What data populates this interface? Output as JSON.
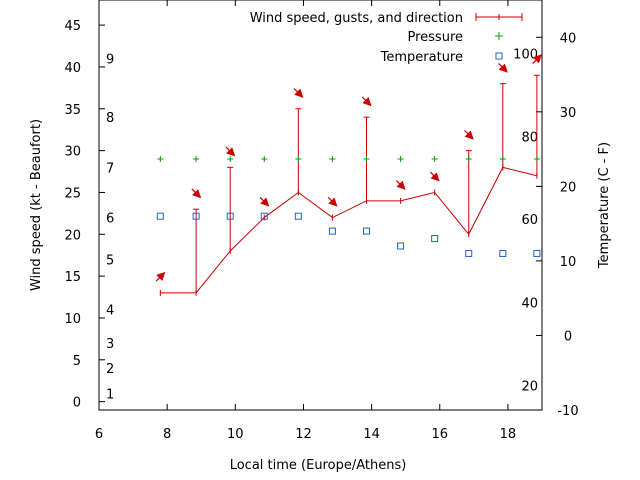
{
  "chart_data": {
    "type": "line",
    "xlabel": "Local time (Europe/Athens)",
    "ylabel": "Wind speed (kt - Beaufort)",
    "y2label": "Temperature (C - F)",
    "xlim": [
      6,
      19
    ],
    "ylim": [
      -1,
      48
    ],
    "y2lim": [
      -10,
      45
    ],
    "x_ticks": [
      6,
      8,
      10,
      12,
      14,
      16,
      18
    ],
    "y_ticks": [
      0,
      5,
      10,
      15,
      20,
      25,
      30,
      35,
      40,
      45
    ],
    "y2_ticks": [
      -10,
      0,
      10,
      20,
      30,
      40
    ],
    "beaufort_ticks": [
      {
        "label": "1",
        "at": 1
      },
      {
        "label": "2",
        "at": 4
      },
      {
        "label": "3",
        "at": 7
      },
      {
        "label": "4",
        "at": 11
      },
      {
        "label": "5",
        "at": 17
      },
      {
        "label": "6",
        "at": 22
      },
      {
        "label": "7",
        "at": 28
      },
      {
        "label": "8",
        "at": 34
      },
      {
        "label": "9",
        "at": 41
      }
    ],
    "fahrenheit_ticks": [
      {
        "label": "20",
        "at_c": -6.7
      },
      {
        "label": "40",
        "at_c": 4.4
      },
      {
        "label": "60",
        "at_c": 15.6
      },
      {
        "label": "80",
        "at_c": 26.7
      },
      {
        "label": "100",
        "at_c": 37.8
      }
    ],
    "legend_position": "top-right",
    "series": [
      {
        "name": "Wind speed, gusts, and direction",
        "color": "#cc0000",
        "x": [
          7.8,
          8.85,
          9.85,
          10.85,
          11.85,
          12.85,
          13.85,
          14.85,
          15.85,
          16.85,
          17.85,
          18.85
        ],
        "values": [
          13,
          13,
          18,
          22,
          25,
          22,
          24,
          24,
          25,
          20,
          28,
          27
        ],
        "gusts": [
          null,
          23,
          28,
          null,
          35,
          null,
          34,
          null,
          null,
          30,
          38,
          39
        ],
        "direction_deg": [
          225,
          315,
          315,
          315,
          315,
          315,
          315,
          315,
          315,
          315,
          315,
          225
        ]
      },
      {
        "name": "Pressure",
        "color": "#00a000",
        "marker": "plus",
        "x": [
          7.8,
          8.85,
          9.85,
          10.85,
          11.85,
          12.85,
          13.85,
          14.85,
          15.85,
          16.85,
          17.85,
          18.85
        ],
        "values": [
          29,
          29,
          29,
          29,
          29,
          29,
          29,
          29,
          29,
          29,
          29,
          29
        ]
      },
      {
        "name": "Temperature",
        "color": "#1e64c8",
        "marker": "square",
        "axis": "y2",
        "x": [
          7.8,
          8.85,
          9.85,
          10.85,
          11.85,
          12.85,
          13.85,
          14.85,
          15.85,
          16.85,
          17.85,
          18.85
        ],
        "values": [
          16,
          16,
          16,
          16,
          16,
          14,
          14,
          12,
          13,
          11,
          11,
          11
        ]
      }
    ]
  }
}
